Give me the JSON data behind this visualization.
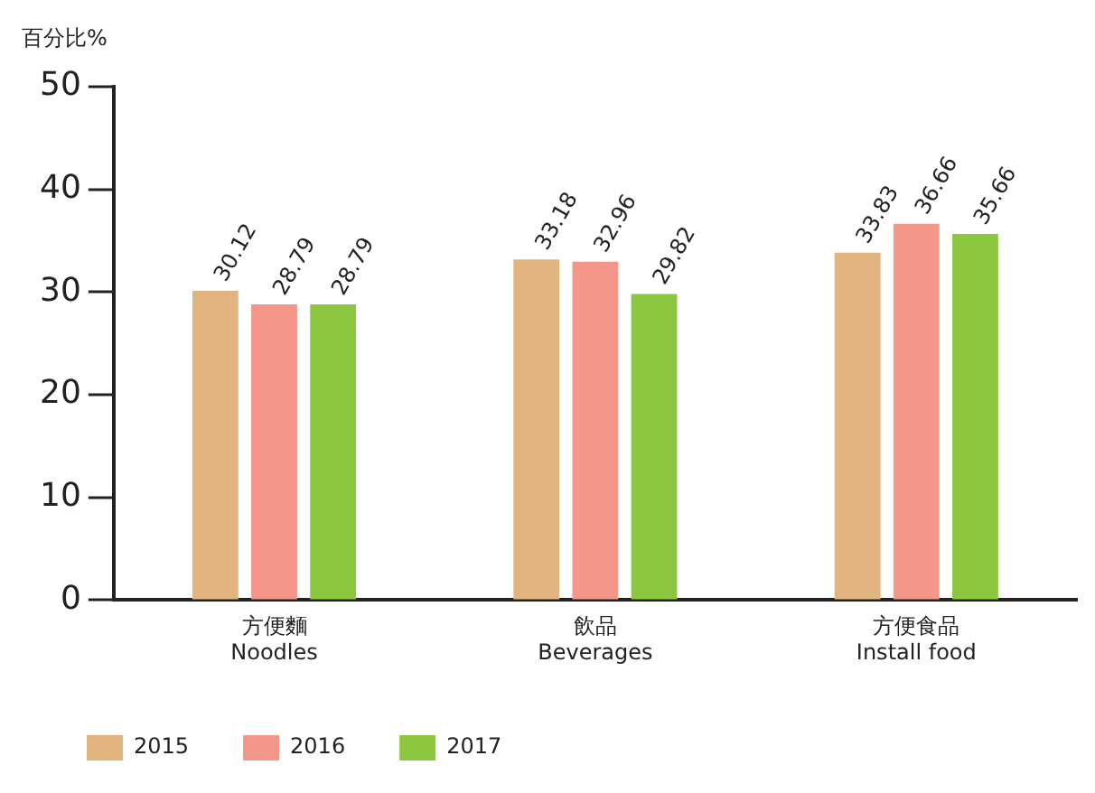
{
  "chart_data": {
    "type": "bar",
    "ylabel": "百分比%",
    "categories": [
      "方便麵\nNoodles",
      "飲品\nBeverages",
      "方便食品\nInstall food"
    ],
    "series": [
      {
        "name": "2015",
        "color": "#e2b47f",
        "values": [
          30.12,
          33.18,
          33.83
        ]
      },
      {
        "name": "2016",
        "color": "#f4978a",
        "values": [
          28.79,
          32.96,
          36.66
        ]
      },
      {
        "name": "2017",
        "color": "#8dc63f",
        "values": [
          28.79,
          29.82,
          35.66
        ]
      }
    ],
    "ylim": [
      0,
      50
    ],
    "yticks": [
      0,
      10,
      20,
      30,
      40,
      50
    ],
    "grid": false,
    "legend": "bottom",
    "data_labels": true
  }
}
